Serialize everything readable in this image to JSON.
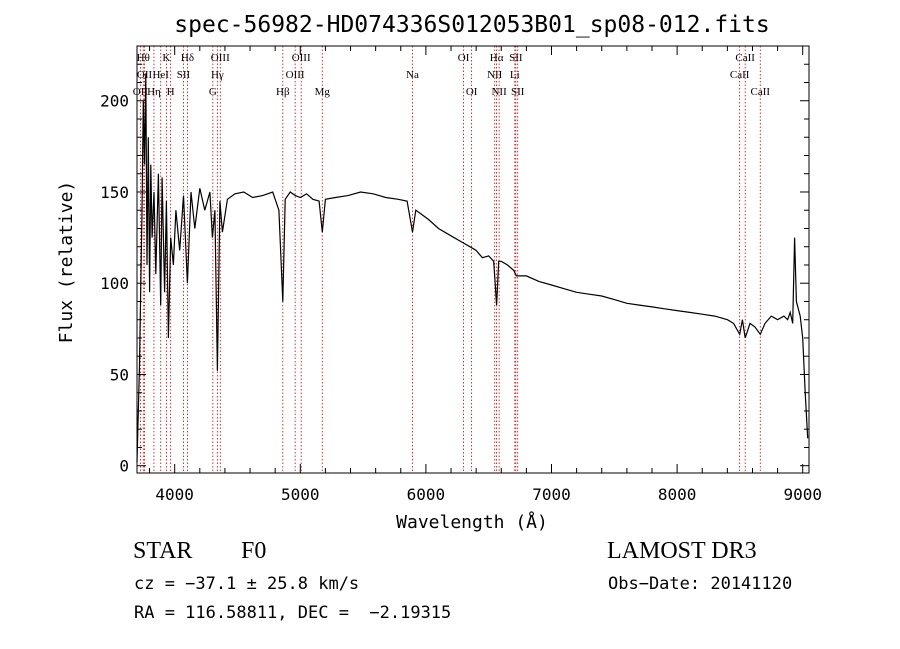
{
  "chart_data": {
    "type": "line",
    "title": "spec-56982-HD074336S012053B01_sp08-012.fits",
    "xlabel": "Wavelength (Å)",
    "ylabel": "Flux (relative)",
    "xlim": [
      3700,
      9050
    ],
    "ylim": [
      -4,
      230
    ],
    "xticks": [
      4000,
      5000,
      6000,
      7000,
      8000,
      9000
    ],
    "yticks": [
      0,
      50,
      100,
      150,
      200
    ],
    "grid": false,
    "series": [
      {
        "name": "spectrum",
        "x": [
          3700,
          3720,
          3740,
          3750,
          3760,
          3770,
          3780,
          3790,
          3800,
          3810,
          3820,
          3835,
          3850,
          3870,
          3889,
          3900,
          3920,
          3934,
          3950,
          3968,
          3990,
          4010,
          4040,
          4070,
          4101,
          4130,
          4160,
          4200,
          4240,
          4280,
          4300,
          4320,
          4340,
          4360,
          4380,
          4420,
          4480,
          4550,
          4620,
          4700,
          4780,
          4830,
          4861,
          4880,
          4920,
          4960,
          5000,
          5050,
          5100,
          5150,
          5175,
          5200,
          5280,
          5380,
          5480,
          5580,
          5680,
          5780,
          5850,
          5893,
          5920,
          5960,
          6020,
          6100,
          6200,
          6300,
          6350,
          6400,
          6450,
          6500,
          6540,
          6563,
          6580,
          6600,
          6650,
          6700,
          6720,
          6800,
          6900,
          7000,
          7100,
          7200,
          7300,
          7400,
          7500,
          7600,
          7700,
          7800,
          7900,
          8000,
          8100,
          8200,
          8300,
          8400,
          8450,
          8498,
          8520,
          8542,
          8580,
          8620,
          8662,
          8700,
          8750,
          8800,
          8850,
          8880,
          8900,
          8920,
          8935,
          8950,
          8980,
          9000,
          9020,
          9040
        ],
        "y": [
          2,
          55,
          140,
          200,
          165,
          215,
          110,
          180,
          95,
          165,
          125,
          150,
          105,
          160,
          88,
          158,
          95,
          145,
          70,
          125,
          110,
          140,
          118,
          148,
          100,
          150,
          130,
          152,
          140,
          150,
          125,
          140,
          52,
          145,
          128,
          146,
          149,
          150,
          147,
          148,
          150,
          140,
          90,
          146,
          150,
          148,
          147,
          149,
          146,
          145,
          128,
          146,
          147,
          148,
          150,
          149,
          147,
          146,
          145,
          128,
          140,
          138,
          135,
          130,
          126,
          122,
          120,
          118,
          114,
          115,
          112,
          88,
          112,
          112,
          110,
          107,
          104,
          104,
          101,
          99,
          97,
          95,
          94,
          93,
          91,
          89,
          88,
          87,
          86,
          85,
          84,
          83,
          82,
          80,
          78,
          72,
          80,
          70,
          78,
          76,
          72,
          78,
          82,
          80,
          82,
          80,
          84,
          78,
          125,
          90,
          82,
          70,
          40,
          15
        ]
      }
    ],
    "lines": [
      {
        "label": "OII",
        "x": 3727,
        "row": 3
      },
      {
        "label": "Hθ",
        "x": 3750,
        "row": 1
      },
      {
        "label": "OII",
        "x": 3760,
        "row": 2
      },
      {
        "label": "Hη",
        "x": 3835,
        "row": 3
      },
      {
        "label": "HeI",
        "x": 3889,
        "row": 2
      },
      {
        "label": "K",
        "x": 3934,
        "row": 1
      },
      {
        "label": "H",
        "x": 3968,
        "row": 3
      },
      {
        "label": "SII",
        "x": 4070,
        "row": 2
      },
      {
        "label": "Hδ",
        "x": 4102,
        "row": 1
      },
      {
        "label": "G",
        "x": 4304,
        "row": 3
      },
      {
        "label": "Hγ",
        "x": 4340,
        "row": 2
      },
      {
        "label": "OIII",
        "x": 4363,
        "row": 1
      },
      {
        "label": "Hβ",
        "x": 4861,
        "row": 3
      },
      {
        "label": "OIII",
        "x": 4959,
        "row": 2
      },
      {
        "label": "OIII",
        "x": 5007,
        "row": 1
      },
      {
        "label": "Mg",
        "x": 5175,
        "row": 3
      },
      {
        "label": "Na",
        "x": 5893,
        "row": 2
      },
      {
        "label": "OI",
        "x": 6300,
        "row": 1
      },
      {
        "label": "OI",
        "x": 6364,
        "row": 3
      },
      {
        "label": "NII",
        "x": 6548,
        "row": 2
      },
      {
        "label": "Hα",
        "x": 6563,
        "row": 1
      },
      {
        "label": "NII",
        "x": 6583,
        "row": 3
      },
      {
        "label": "Li",
        "x": 6708,
        "row": 2
      },
      {
        "label": "SII",
        "x": 6716,
        "row": 1
      },
      {
        "label": "SII",
        "x": 6731,
        "row": 3
      },
      {
        "label": "CaII",
        "x": 8498,
        "row": 2
      },
      {
        "label": "CaII",
        "x": 8542,
        "row": 1
      },
      {
        "label": "CaII",
        "x": 8662,
        "row": 3
      }
    ]
  },
  "info": {
    "object_class": "STAR",
    "subclass": "F0",
    "survey": "LAMOST DR3",
    "cz": "cz = −37.1 ± 25.8 km/s",
    "obs_date": "Obs−Date: 20141120",
    "coords": "RA = 116.58811, DEC =  −2.19315"
  }
}
